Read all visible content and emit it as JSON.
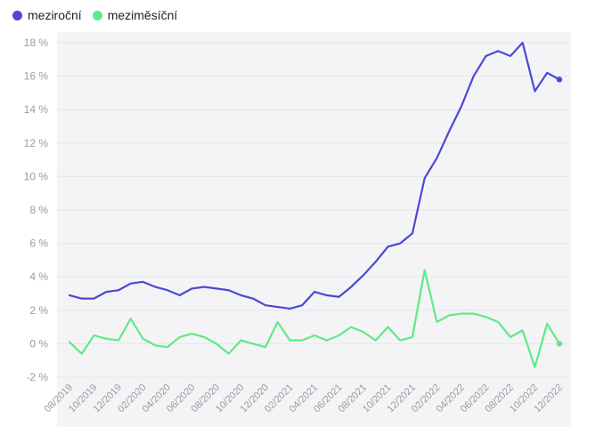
{
  "chart_data": {
    "type": "line",
    "title": "",
    "xlabel": "",
    "ylabel": "",
    "ylim": [
      -2,
      18
    ],
    "yticks": [
      -2,
      0,
      2,
      4,
      6,
      8,
      10,
      12,
      14,
      16,
      18
    ],
    "ytick_labels": [
      "-2 %",
      "0 %",
      "2 %",
      "4 %",
      "6 %",
      "8 %",
      "10 %",
      "12 %",
      "14 %",
      "16 %",
      "18 %"
    ],
    "grid": true,
    "legend_position": "top-left",
    "x": [
      "08/2019",
      "09/2019",
      "10/2019",
      "11/2019",
      "12/2019",
      "01/2020",
      "02/2020",
      "03/2020",
      "04/2020",
      "05/2020",
      "06/2020",
      "07/2020",
      "08/2020",
      "09/2020",
      "10/2020",
      "11/2020",
      "12/2020",
      "01/2021",
      "02/2021",
      "03/2021",
      "04/2021",
      "05/2021",
      "06/2021",
      "07/2021",
      "08/2021",
      "09/2021",
      "10/2021",
      "11/2021",
      "12/2021",
      "01/2022",
      "02/2022",
      "03/2022",
      "04/2022",
      "05/2022",
      "06/2022",
      "07/2022",
      "08/2022",
      "09/2022",
      "10/2022",
      "11/2022",
      "12/2022"
    ],
    "xtick_labels": [
      "08/2019",
      "10/2019",
      "12/2019",
      "02/2020",
      "04/2020",
      "06/2020",
      "08/2020",
      "10/2020",
      "12/2020",
      "02/2021",
      "04/2021",
      "06/2021",
      "08/2021",
      "10/2021",
      "12/2021",
      "02/2022",
      "04/2022",
      "06/2022",
      "08/2022",
      "10/2022",
      "12/2022"
    ],
    "series": [
      {
        "name": "meziroční",
        "color": "#4b48d6",
        "values": [
          2.9,
          2.7,
          2.7,
          3.1,
          3.2,
          3.6,
          3.7,
          3.4,
          3.2,
          2.9,
          3.3,
          3.4,
          3.3,
          3.2,
          2.9,
          2.7,
          2.3,
          2.2,
          2.1,
          2.3,
          3.1,
          2.9,
          2.8,
          3.4,
          4.1,
          4.9,
          5.8,
          6.0,
          6.6,
          9.9,
          11.1,
          12.7,
          14.2,
          16.0,
          17.2,
          17.5,
          17.2,
          18.0,
          15.1,
          16.2,
          15.8
        ]
      },
      {
        "name": "meziměsíční",
        "color": "#5eea86",
        "values": [
          0.1,
          -0.6,
          0.5,
          0.3,
          0.2,
          1.5,
          0.3,
          -0.1,
          -0.2,
          0.4,
          0.6,
          0.4,
          0.0,
          -0.6,
          0.2,
          0.0,
          -0.2,
          1.3,
          0.2,
          0.2,
          0.5,
          0.2,
          0.5,
          1.0,
          0.7,
          0.2,
          1.0,
          0.2,
          0.4,
          4.4,
          1.3,
          1.7,
          1.8,
          1.8,
          1.6,
          1.3,
          0.4,
          0.8,
          -1.4,
          1.2,
          0.0
        ]
      }
    ]
  }
}
